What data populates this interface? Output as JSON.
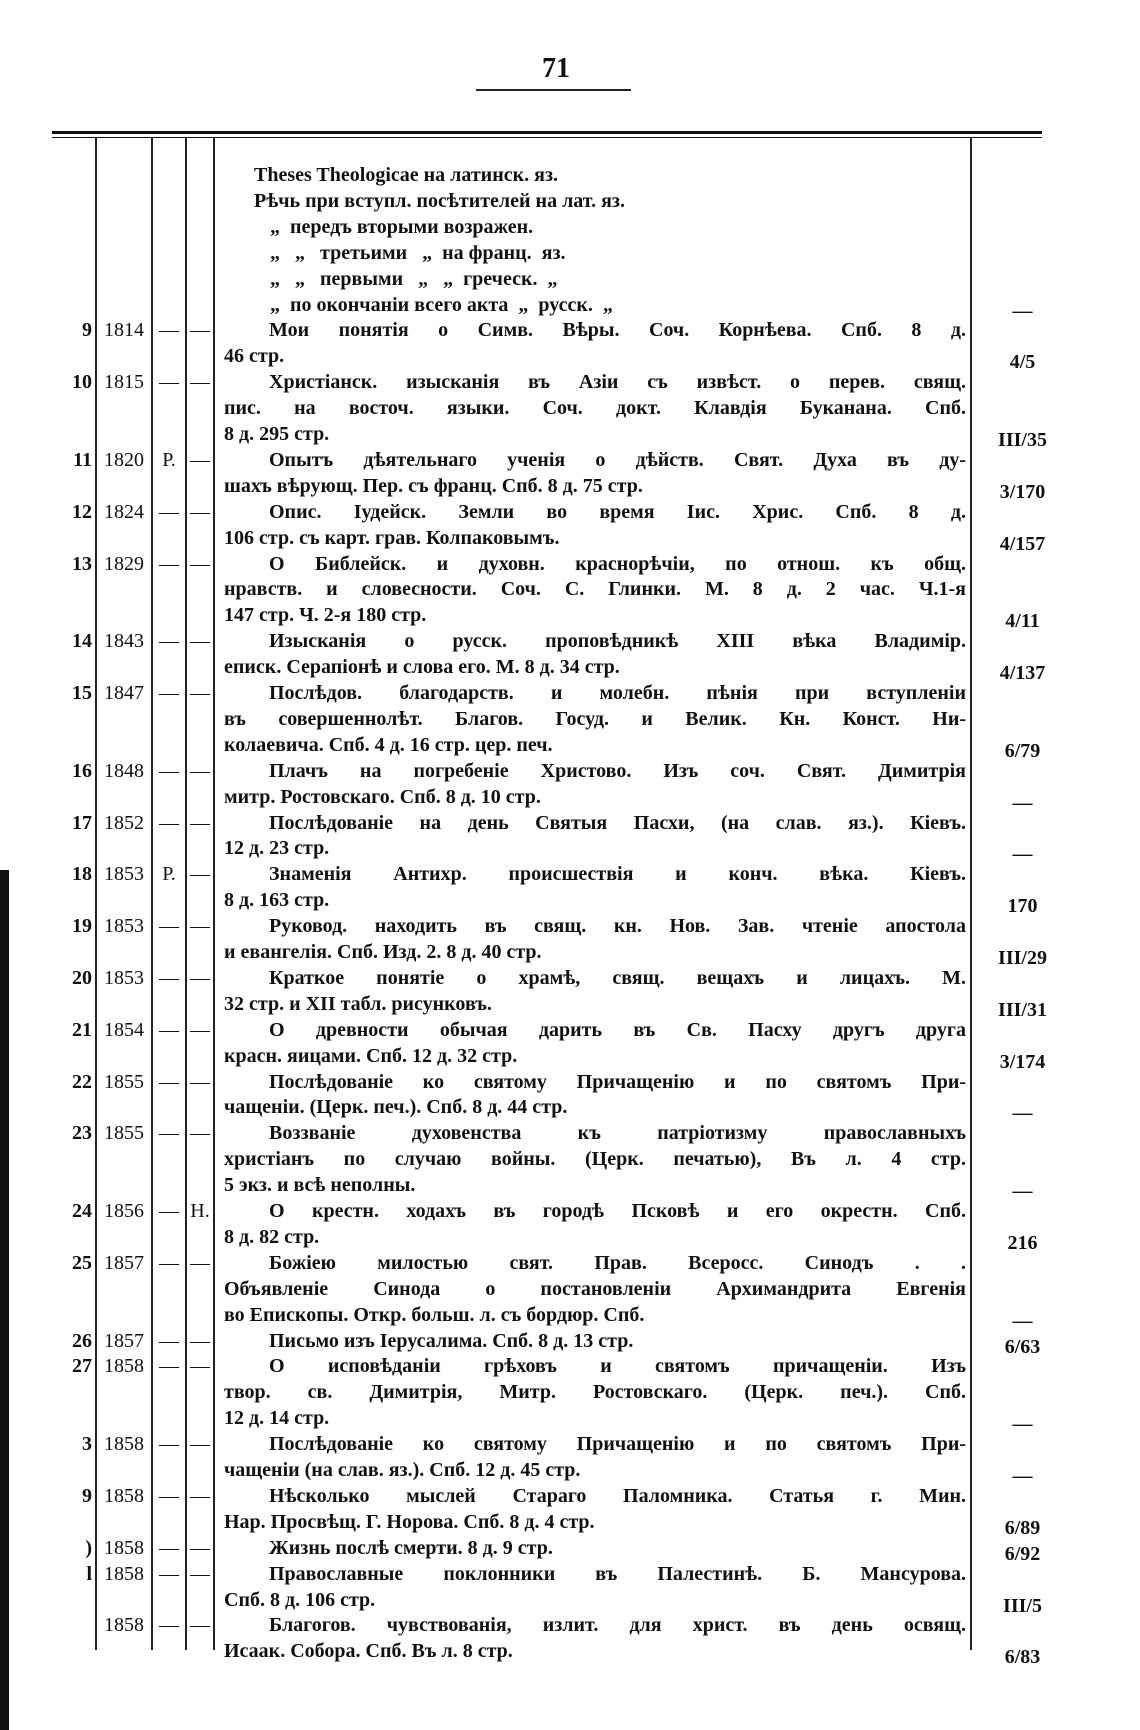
{
  "page_number": "71",
  "entries": [
    {
      "num": "",
      "year": "",
      "mark1": "",
      "mark2": "",
      "lines": [
        "Theses Theologicae на латинск. яз.",
        "Рѣчь при вступл. посѣтителей на лат. яз.",
        "„  передъ вторыми возражен.",
        "„   „   третьими   „  на франц.  яз.",
        "„   „   первыми   „   „  греческ.  „",
        "„  по окончаніи всего акта  „  русск.  „"
      ],
      "price": "—"
    },
    {
      "num": "9",
      "year": "1814",
      "mark1": "—",
      "mark2": "—",
      "lines": [
        "Мои понятія о Симв. Вѣры. Соч. Корнѣева. Спб. 8 д.",
        "46 стр."
      ],
      "price": "4/5"
    },
    {
      "num": "10",
      "year": "1815",
      "mark1": "—",
      "mark2": "—",
      "lines": [
        "Христіанск. изысканія въ Азіи съ извѣст. о перев. свящ.",
        "пис. на восточ. языки. Соч. докт. Клавдія Буканана. Спб.",
        "8 д. 295 стр."
      ],
      "price": "III/35"
    },
    {
      "num": "11",
      "year": "1820",
      "mark1": "Р.",
      "mark2": "—",
      "lines": [
        "Опытъ дѣятельнаго ученія о дѣйств. Свят. Духа въ ду-",
        "шахъ вѣрующ. Пер. съ франц. Спб. 8 д. 75 стр."
      ],
      "price": "3/170"
    },
    {
      "num": "12",
      "year": "1824",
      "mark1": "—",
      "mark2": "—",
      "lines": [
        "Опис. Іудейск. Земли во время Іис. Хрис. Спб. 8 д.",
        "106 стр. съ карт. грав. Колпаковымъ."
      ],
      "price": "4/157"
    },
    {
      "num": "13",
      "year": "1829",
      "mark1": "—",
      "mark2": "—",
      "lines": [
        "О Библейск. и духовн. краснорѣчіи, по отнош. къ общ.",
        "нравств. и словесности. Соч. С. Глинки. М. 8 д. 2 час. Ч.1-я",
        "147 стр. Ч. 2-я 180 стр."
      ],
      "price": "4/11"
    },
    {
      "num": "14",
      "year": "1843",
      "mark1": "—",
      "mark2": "—",
      "lines": [
        "Изысканія о русск. проповѣдникѣ XIII вѣка Владимір.",
        "епиcк. Серапіонѣ и слова его. М. 8 д. 34 стр."
      ],
      "price": "4/137"
    },
    {
      "num": "15",
      "year": "1847",
      "mark1": "—",
      "mark2": "—",
      "lines": [
        "Послѣдов. благодарств. и молебн. пѣнія при вступленіи",
        "въ совершеннолѣт. Благов. Госуд. и Велик. Кн. Конст. Ни-",
        "колаевича. Спб. 4 д. 16 стр. цер. печ."
      ],
      "price": "6/79"
    },
    {
      "num": "16",
      "year": "1848",
      "mark1": "—",
      "mark2": "—",
      "lines": [
        "Плачъ на погребеніе Христово. Изъ соч. Свят. Димитрія",
        "митр. Ростовскаго. Спб. 8 д. 10 стр."
      ],
      "price": "—"
    },
    {
      "num": "17",
      "year": "1852",
      "mark1": "—",
      "mark2": "—",
      "lines": [
        "Послѣдованіе на день Святыя Пасхи, (на слав. яз.). Кіевъ.",
        "12 д. 23 стр."
      ],
      "price": "—"
    },
    {
      "num": "18",
      "year": "1853",
      "mark1": "Р.",
      "mark2": "—",
      "lines": [
        "Знаменія Антихр. происшествія и конч. вѣка. Кіевъ.",
        "8 д. 163 стр."
      ],
      "price": "170"
    },
    {
      "num": "19",
      "year": "1853",
      "mark1": "—",
      "mark2": "—",
      "lines": [
        "Руковод. находить въ свящ. кн. Нов. Зав. чтеніе апостола",
        "и евангелія. Спб. Изд. 2. 8 д. 40 стр."
      ],
      "price": "III/29"
    },
    {
      "num": "20",
      "year": "1853",
      "mark1": "—",
      "mark2": "—",
      "lines": [
        "Краткое понятіе о храмѣ, свящ. вещахъ и лицахъ. М.",
        "32 стр. и XII табл. рисунковъ."
      ],
      "price": "III/31"
    },
    {
      "num": "21",
      "year": "1854",
      "mark1": "—",
      "mark2": "—",
      "lines": [
        "О древности обычая дарить въ Св. Пасху другъ друга",
        "красн. яицами. Спб. 12 д. 32 стр."
      ],
      "price": "3/174"
    },
    {
      "num": "22",
      "year": "1855",
      "mark1": "—",
      "mark2": "—",
      "lines": [
        "Послѣдованіе ко святому Причащенію и по святомъ При-",
        "чащеніи. (Церк. печ.). Спб. 8 д. 44 стр."
      ],
      "price": "—"
    },
    {
      "num": "23",
      "year": "1855",
      "mark1": "—",
      "mark2": "—",
      "lines": [
        "Воззваніе духовенства къ патріотизму православныхъ",
        "христіанъ по случаю войны. (Церк. печатью), Въ л. 4 стр.",
        "5 экз. и всѣ неполны."
      ],
      "price": "—"
    },
    {
      "num": "24",
      "year": "1856",
      "mark1": "—",
      "mark2": "Н.",
      "lines": [
        "О крестн. ходахъ въ городѣ Псковѣ и его окрестн. Спб.",
        "8 д. 82 стр."
      ],
      "price": "216"
    },
    {
      "num": "25",
      "year": "1857",
      "mark1": "—",
      "mark2": "—",
      "lines": [
        "Божіею милостью свят. Прав. Всеросс. Синодъ  . .",
        "Объявленіе Синода о постановленіи Архимандрита Евгенія",
        "во Епископы. Откр. больш. л. съ бордюр. Спб."
      ],
      "price": "—"
    },
    {
      "num": "26",
      "year": "1857",
      "mark1": "—",
      "mark2": "—",
      "lines": [
        "Письмо изъ Іерусалима. Спб. 8 д. 13 стр."
      ],
      "price": "6/63"
    },
    {
      "num": "27",
      "year": "1858",
      "mark1": "—",
      "mark2": "—",
      "lines": [
        "О исповѣданіи грѣховъ и святомъ причащеніи. Изъ",
        "твор. св. Димитрія, Митр. Ростовскаго. (Церк. печ.). Спб.",
        "12 д. 14 стр."
      ],
      "price": "—"
    },
    {
      "num": "3",
      "year": "1858",
      "mark1": "—",
      "mark2": "—",
      "lines": [
        "Послѣдованіе ко святому Причащенію и по святомъ При-",
        "чащеніи (на слав. яз.). Спб. 12 д. 45 стр."
      ],
      "price": "—"
    },
    {
      "num": "9",
      "year": "1858",
      "mark1": "—",
      "mark2": "—",
      "lines": [
        "Нѣсколько мыслей Стараго Паломника. Статья г. Мин.",
        "Нар. Просвѣщ. Г. Норова. Спб. 8 д. 4 стр."
      ],
      "price": "6/89"
    },
    {
      "num": ")",
      "year": "1858",
      "mark1": "—",
      "mark2": "—",
      "lines": [
        "Жизнь послѣ смерти. 8 д. 9 стр."
      ],
      "price": "6/92"
    },
    {
      "num": "l",
      "year": "1858",
      "mark1": "—",
      "mark2": "—",
      "lines": [
        "Православные поклонники въ Палестинѣ. Б. Мансурова.",
        "Спб. 8 д. 106 стр."
      ],
      "price": "III/5"
    },
    {
      "num": "",
      "year": "1858",
      "mark1": "—",
      "mark2": "—",
      "lines": [
        "Благогов. чувствованія, излит. для христ. въ день освящ.",
        "Исаак. Собора. Спб. Въ л. 8 стр."
      ],
      "price": "6/83"
    }
  ]
}
